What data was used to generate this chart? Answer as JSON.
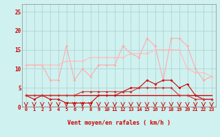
{
  "x": [
    0,
    1,
    2,
    3,
    4,
    5,
    6,
    7,
    8,
    9,
    10,
    11,
    12,
    13,
    14,
    15,
    16,
    17,
    18,
    19,
    20,
    21,
    22,
    23
  ],
  "line1": [
    11,
    11,
    11,
    7,
    7,
    16,
    7,
    10,
    8,
    11,
    11,
    11,
    16,
    14,
    13,
    18,
    16,
    7,
    18,
    18,
    16,
    10,
    7,
    8
  ],
  "line2": [
    11,
    11,
    11,
    11,
    11,
    12,
    12,
    12,
    13,
    13,
    13,
    13,
    13,
    14,
    14,
    14,
    15,
    15,
    15,
    15,
    10,
    9,
    9,
    8
  ],
  "line3": [
    3,
    2,
    3,
    2,
    2,
    1,
    1,
    1,
    1,
    3,
    3,
    3,
    4,
    5,
    5,
    7,
    6,
    7,
    7,
    5,
    6,
    3,
    2,
    2
  ],
  "line4": [
    3,
    3,
    3,
    3,
    3,
    3,
    3,
    4,
    4,
    4,
    4,
    4,
    4,
    4,
    5,
    5,
    5,
    5,
    5,
    3,
    3,
    2,
    2,
    2
  ],
  "line5": [
    3,
    3,
    3,
    3,
    3,
    3,
    3,
    3,
    3,
    3,
    3,
    3,
    3,
    3,
    3,
    3,
    3,
    3,
    3,
    3,
    3,
    3,
    3,
    3
  ],
  "bg_color": "#cff1f0",
  "grid_color": "#aacfce",
  "line1_color": "#ffaaaa",
  "line2_color": "#ffbbbb",
  "line3_color": "#cc0000",
  "line4_color": "#cc3333",
  "line5_color": "#cc0000",
  "arrow_color": "#cc0000",
  "xlabel": "Vent moyen/en rafales ( km/h )",
  "ylim": [
    0,
    27
  ],
  "xlim": [
    -0.5,
    23.5
  ],
  "yticks": [
    0,
    5,
    10,
    15,
    20,
    25
  ],
  "xticks": [
    0,
    1,
    2,
    3,
    4,
    5,
    6,
    7,
    8,
    9,
    10,
    11,
    12,
    13,
    14,
    15,
    16,
    17,
    18,
    19,
    20,
    21,
    22,
    23
  ]
}
